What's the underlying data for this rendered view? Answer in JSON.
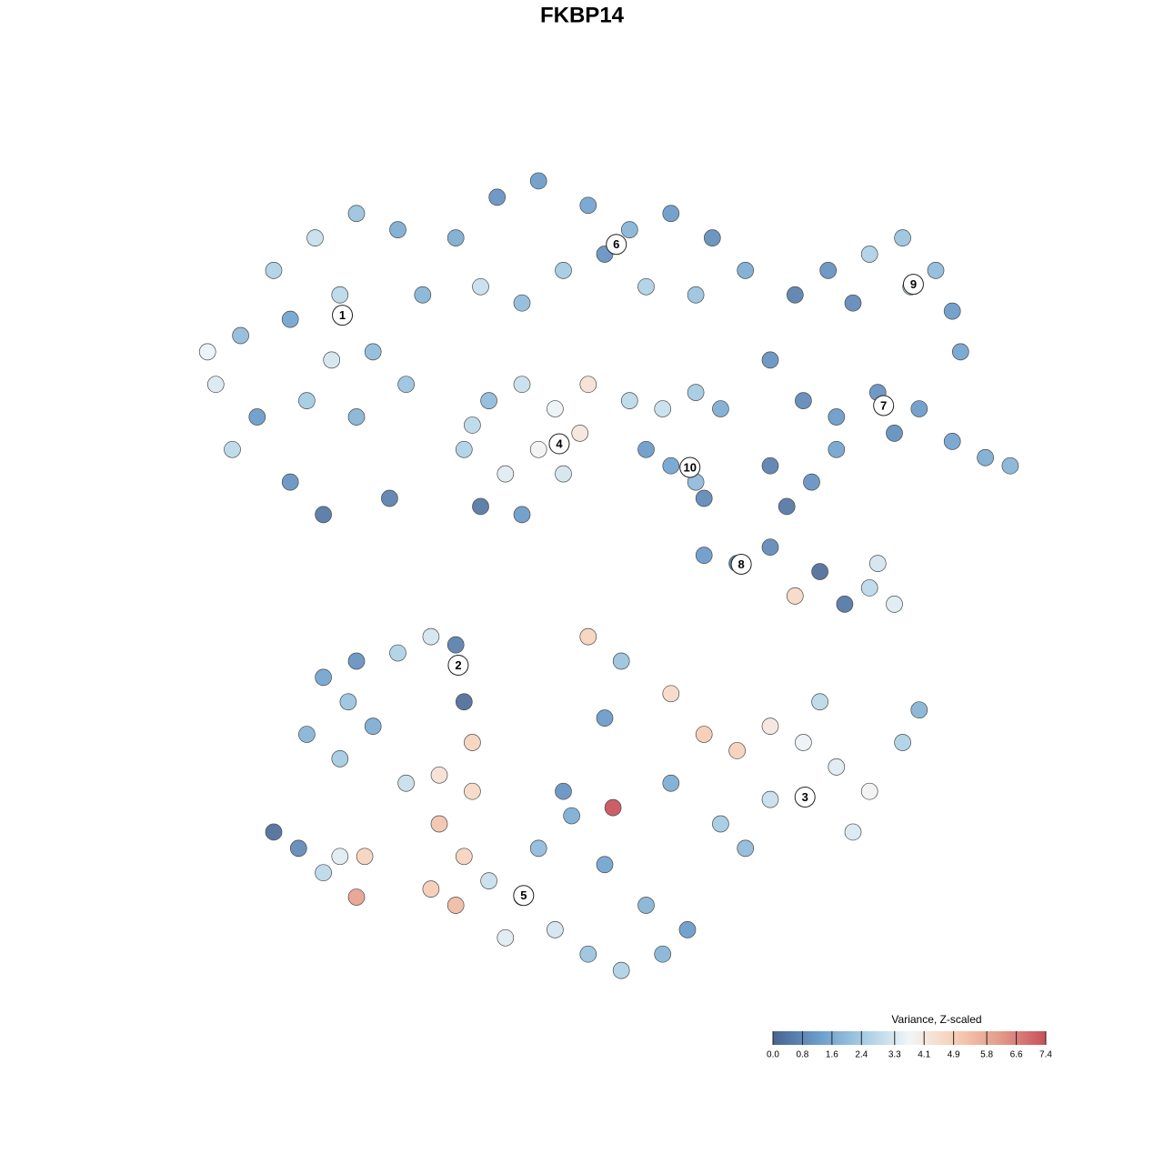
{
  "chart_data": {
    "type": "scatter",
    "title": "FKBP14",
    "xlim": [
      0,
      100
    ],
    "ylim": [
      0,
      100
    ],
    "x": [
      3,
      6,
      10,
      15,
      20,
      25,
      12,
      18,
      22,
      8,
      14,
      20,
      26,
      12,
      16,
      24,
      5,
      28,
      17,
      2,
      32,
      37,
      42,
      48,
      53,
      58,
      63,
      67,
      45,
      40,
      55,
      50,
      61,
      35,
      73,
      77,
      82,
      86,
      90,
      92,
      80,
      93,
      87,
      70,
      74,
      78,
      83,
      88,
      92,
      96,
      99,
      85,
      78,
      33,
      36,
      40,
      44,
      47,
      42,
      38,
      45,
      35,
      40,
      48,
      34,
      53,
      57,
      61,
      64,
      58,
      61,
      55,
      62,
      62,
      66,
      70,
      72,
      75,
      76,
      79,
      82,
      85,
      83,
      73,
      70,
      14,
      18,
      22,
      16,
      20,
      25,
      29,
      32,
      33,
      34,
      26,
      30,
      19,
      48,
      52,
      58,
      62,
      66,
      70,
      74,
      78,
      82,
      86,
      88,
      76,
      70,
      64,
      58,
      67,
      80,
      50,
      30,
      33,
      36,
      40,
      44,
      48,
      52,
      57,
      60,
      38,
      32,
      34,
      42,
      46,
      50,
      55,
      29,
      45,
      10,
      13,
      16,
      18,
      21,
      20,
      51
    ],
    "y": [
      74,
      80,
      88,
      92,
      95,
      93,
      82,
      85,
      78,
      70,
      72,
      70,
      74,
      62,
      58,
      60,
      66,
      85,
      77,
      78,
      92,
      97,
      99,
      96,
      93,
      95,
      92,
      88,
      88,
      84,
      86,
      90,
      85,
      86,
      85,
      88,
      90,
      92,
      88,
      83,
      84,
      78,
      86,
      77,
      72,
      70,
      73,
      71,
      67,
      65,
      64,
      68,
      66,
      66,
      72,
      74,
      71,
      68,
      66,
      63,
      63,
      59,
      58,
      74,
      69,
      72,
      71,
      73,
      71,
      64,
      62,
      66,
      60,
      53,
      52,
      54,
      59,
      62,
      51,
      47,
      49,
      47,
      52,
      48,
      64,
      31,
      28,
      32,
      38,
      40,
      41,
      43,
      42,
      35,
      30,
      25,
      26,
      35,
      43,
      40,
      36,
      31,
      29,
      32,
      30,
      27,
      24,
      30,
      34,
      35,
      23,
      20,
      25,
      17,
      19,
      33,
      20,
      16,
      13,
      11,
      7,
      4,
      2,
      4,
      7,
      6,
      10,
      24,
      17,
      21,
      15,
      10,
      12,
      24,
      19,
      17,
      14,
      16,
      16,
      11,
      22
    ],
    "values": [
      3.3,
      2.0,
      2.6,
      3.0,
      2.2,
      1.6,
      1.4,
      2.8,
      2.0,
      1.2,
      2.4,
      1.8,
      2.2,
      1.0,
      0.4,
      0.6,
      2.8,
      1.8,
      3.2,
      3.6,
      1.6,
      1.0,
      1.2,
      1.4,
      1.8,
      1.2,
      0.9,
      1.6,
      2.4,
      2.0,
      2.6,
      1.0,
      2.2,
      3.0,
      0.6,
      1.0,
      2.6,
      2.2,
      2.0,
      1.2,
      0.8,
      1.4,
      2.8,
      1.0,
      0.8,
      1.2,
      1.0,
      1.2,
      1.4,
      1.6,
      1.8,
      0.9,
      1.4,
      2.6,
      2.0,
      3.0,
      3.6,
      4.2,
      3.8,
      3.4,
      3.2,
      0.4,
      1.2,
      4.4,
      2.8,
      2.8,
      3.0,
      2.4,
      1.6,
      1.4,
      2.0,
      1.2,
      0.8,
      1.2,
      0.4,
      0.8,
      0.4,
      1.0,
      0.2,
      0.4,
      2.8,
      3.4,
      3.2,
      4.6,
      0.6,
      1.8,
      2.4,
      1.6,
      1.4,
      1.0,
      2.6,
      3.2,
      0.6,
      0.2,
      4.8,
      3.0,
      4.4,
      2.2,
      4.8,
      2.2,
      4.6,
      5.0,
      4.9,
      4.2,
      3.6,
      3.4,
      3.8,
      2.6,
      1.8,
      2.8,
      3.0,
      2.4,
      1.6,
      2.0,
      3.3,
      1.2,
      5.2,
      4.8,
      3.0,
      2.6,
      3.2,
      2.2,
      2.6,
      1.8,
      1.2,
      3.4,
      5.4,
      4.6,
      2.0,
      1.6,
      1.4,
      1.8,
      5.0,
      1.0,
      0.2,
      0.8,
      2.8,
      3.4,
      4.8,
      6.0,
      7.4
    ],
    "clusters": [
      {
        "label": "1",
        "x": 18.3,
        "y": 82.5
      },
      {
        "label": "2",
        "x": 32.3,
        "y": 39.5
      },
      {
        "label": "3",
        "x": 74.2,
        "y": 23.3
      },
      {
        "label": "4",
        "x": 44.5,
        "y": 66.7
      },
      {
        "label": "5",
        "x": 40.2,
        "y": 11.2
      },
      {
        "label": "6",
        "x": 51.4,
        "y": 91.2
      },
      {
        "label": "7",
        "x": 83.7,
        "y": 71.4
      },
      {
        "label": "8",
        "x": 66.5,
        "y": 51.9
      },
      {
        "label": "9",
        "x": 87.3,
        "y": 86.3
      },
      {
        "label": "10",
        "x": 60.3,
        "y": 63.8
      }
    ],
    "legend_title": "Variance, Z-scaled",
    "colorlim": [
      0,
      7.4
    ],
    "colorticks": [
      {
        "value": 0,
        "label": "0.0"
      },
      0.8,
      1.6,
      2.4,
      3.3,
      4.1,
      4.9,
      5.8,
      6.6,
      7.4
    ],
    "colors": [
      "#48648f",
      "#6a9ccb",
      "#a6cde3",
      "#f2f5f7",
      "#f7cfb6",
      "#e39a8a",
      "#c8505a"
    ],
    "legend_position": "bottom-right"
  }
}
